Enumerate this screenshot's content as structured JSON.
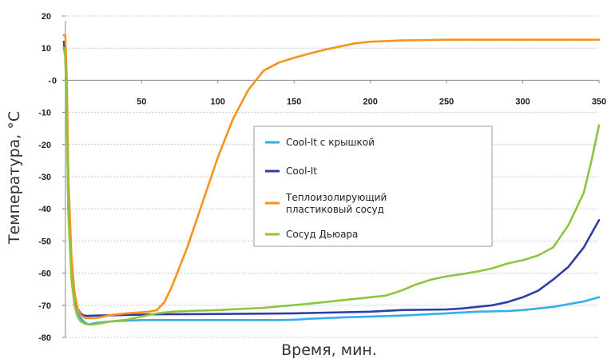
{
  "chart_data": {
    "type": "line",
    "xlabel": "Время, мин.",
    "ylabel": "Температура, °С",
    "xlim": [
      -2,
      350
    ],
    "ylim": [
      -80,
      20
    ],
    "x_ticks": [
      "50",
      "100",
      "150",
      "200",
      "250",
      "300",
      "350"
    ],
    "x_tick_values": [
      50,
      100,
      150,
      200,
      250,
      300,
      350
    ],
    "x_zero_label": "0",
    "y_ticks": [
      "20",
      "10",
      "-",
      "-10",
      "-20",
      "-30",
      "-40",
      "-50",
      "-60",
      "-70",
      "-80"
    ],
    "y_tick_values": [
      20,
      10,
      0,
      -10,
      -20,
      -30,
      -40,
      -50,
      -60,
      -70,
      -80
    ],
    "grid": "horizontal dotted",
    "legend_position": "center",
    "series": [
      {
        "name": "Cool-It с крышкой",
        "color": "#33aee6",
        "x": [
          -1,
          0,
          1,
          2,
          4,
          6,
          8,
          10,
          12,
          15,
          20,
          30,
          40,
          50,
          60,
          80,
          100,
          120,
          140,
          150,
          160,
          170,
          180,
          200,
          220,
          250,
          270,
          290,
          300,
          320,
          340,
          350
        ],
        "y": [
          11,
          8,
          -10,
          -40,
          -60,
          -68,
          -72,
          -74,
          -75,
          -76,
          -75.5,
          -75,
          -74.8,
          -74.6,
          -74.6,
          -74.6,
          -74.6,
          -74.6,
          -74.6,
          -74.5,
          -74.2,
          -74,
          -73.8,
          -73.5,
          -73.2,
          -72.5,
          -72,
          -71.8,
          -71.5,
          -70.5,
          -68.8,
          -67.5
        ]
      },
      {
        "name": "Cool-It",
        "color": "#2f3ea6",
        "x": [
          -1,
          0,
          1,
          2,
          4,
          6,
          8,
          10,
          12,
          15,
          20,
          40,
          60,
          100,
          150,
          200,
          220,
          250,
          260,
          280,
          290,
          300,
          310,
          320,
          330,
          340,
          350
        ],
        "y": [
          12,
          9,
          -10,
          -40,
          -60,
          -68,
          -71,
          -72.5,
          -73.2,
          -73.3,
          -73.2,
          -73,
          -72.8,
          -72.7,
          -72.5,
          -72,
          -71.5,
          -71.3,
          -71,
          -70,
          -69,
          -67.5,
          -65.5,
          -62,
          -58,
          -52,
          -43.5
        ]
      },
      {
        "name": "Теплоизолирующий пластиковый сосуд",
        "color": "#f7931e",
        "x": [
          -1,
          0,
          1,
          2,
          4,
          6,
          8,
          10,
          13,
          20,
          30,
          40,
          50,
          55,
          60,
          65,
          70,
          80,
          90,
          100,
          110,
          120,
          130,
          140,
          150,
          160,
          170,
          180,
          190,
          200,
          210,
          220,
          250,
          300,
          350
        ],
        "y": [
          14,
          14,
          0,
          -30,
          -55,
          -66,
          -71,
          -73,
          -74,
          -74,
          -73,
          -72.5,
          -72.2,
          -72,
          -71.5,
          -69,
          -64,
          -52,
          -38,
          -24,
          -12,
          -3,
          3,
          5.5,
          7,
          8.3,
          9.5,
          10.5,
          11.5,
          12,
          12.2,
          12.4,
          12.6,
          12.6,
          12.6
        ]
      },
      {
        "name": "Сосуд  Дьюара",
        "color": "#8cc63f",
        "x": [
          -1,
          0,
          1,
          2,
          4,
          6,
          8,
          10,
          13,
          18,
          25,
          30,
          40,
          50,
          60,
          70,
          80,
          100,
          130,
          160,
          190,
          200,
          210,
          220,
          230,
          240,
          250,
          260,
          270,
          280,
          290,
          300,
          310,
          320,
          330,
          340,
          345,
          350
        ],
        "y": [
          10,
          7,
          -12,
          -42,
          -62,
          -70,
          -73.5,
          -75,
          -75.8,
          -76,
          -75.5,
          -75,
          -74.5,
          -73.5,
          -72.5,
          -72,
          -71.8,
          -71.5,
          -70.8,
          -69.5,
          -68,
          -67.5,
          -67,
          -65.5,
          -63.5,
          -62,
          -61,
          -60.3,
          -59.5,
          -58.5,
          -57,
          -56,
          -54.5,
          -52,
          -45,
          -35,
          -25,
          -14
        ]
      }
    ]
  }
}
